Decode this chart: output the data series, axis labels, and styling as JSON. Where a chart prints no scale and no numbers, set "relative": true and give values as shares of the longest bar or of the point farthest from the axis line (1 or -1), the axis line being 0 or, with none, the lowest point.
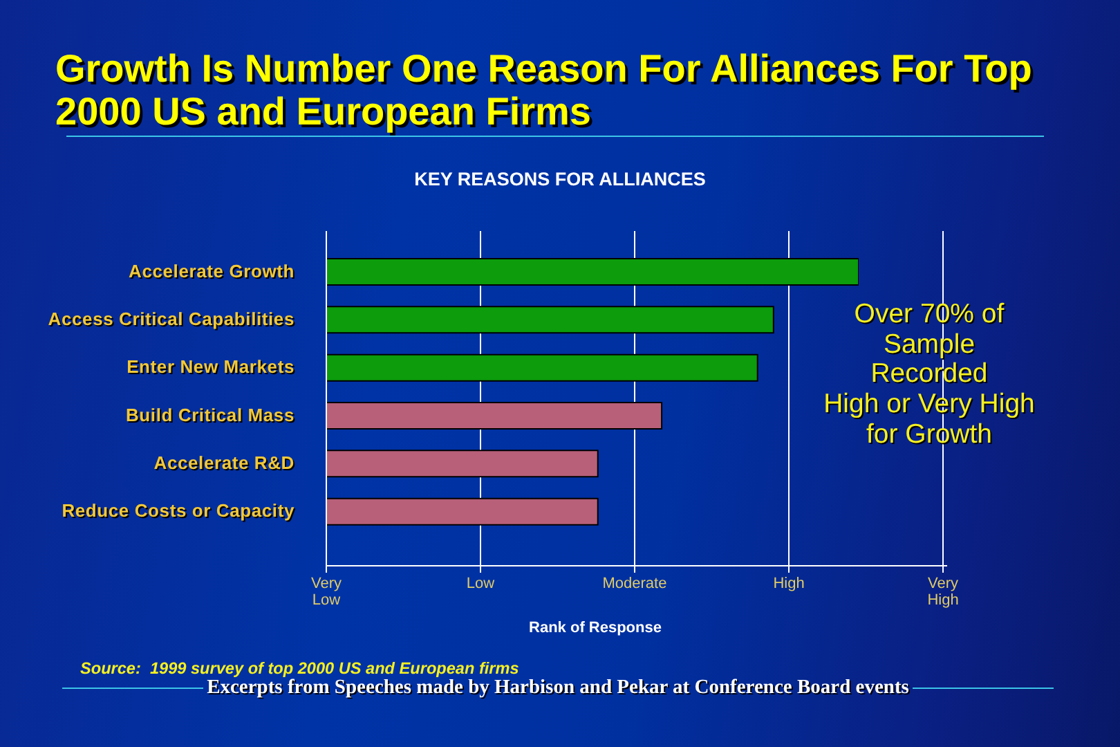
{
  "chart_data": {
    "type": "bar",
    "orientation": "horizontal",
    "relative": true,
    "title": "Growth Is Number One Reason For Alliances For Top 2000 US and European Firms",
    "subtitle": "KEY REASONS FOR ALLIANCES",
    "xlabel": "Rank of Response",
    "categories": [
      "Accelerate Growth",
      "Access Critical Capabilities",
      "Enter New Markets",
      "Build Critical Mass",
      "Accelerate R&D",
      "Reduce Costs or Capacity"
    ],
    "values": [
      1,
      0.84,
      0.81,
      0.63,
      0.51,
      0.51
    ],
    "colors": [
      "#0c9c0c",
      "#0c9c0c",
      "#0c9c0c",
      "#b8607a",
      "#b8607a",
      "#b8607a"
    ],
    "grid": "x",
    "annotations": [
      "Over 70% of\nSample\nRecorded\nHigh or Very High\nfor Growth",
      "Very Low",
      "Low",
      "Moderate",
      "High",
      "Very High",
      "Source:  1999 survey of top 2000 US and European firms",
      "Excerpts from Speeches made by Harbison and Pekar at Conference Board events"
    ]
  }
}
